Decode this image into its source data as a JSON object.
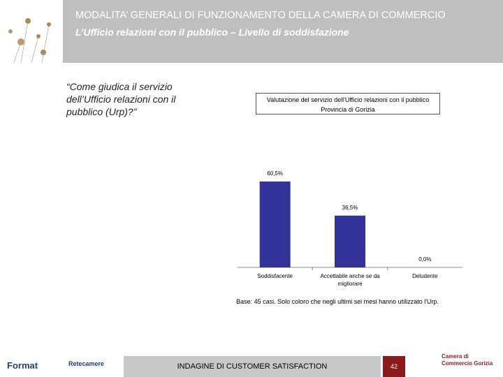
{
  "header": {
    "title": "MODALITA’ GENERALI DI FUNZIONAMENTO DELLA CAMERA DI COMMERCIO",
    "subtitle": "L’Ufficio relazioni con il pubblico – Livello di soddisfazione"
  },
  "question": "“Come giudica il servizio dell’Ufficio relazioni con il pubblico (Urp)?”",
  "chart_data": {
    "type": "bar",
    "title": "Valutazione del servizio dell'Ufficio relazioni con il pubblico",
    "subtitle": "Provincia di Gorizia",
    "categories": [
      "Soddisfacente",
      "Accettabile anche se da migliorare",
      "Deludente"
    ],
    "values": [
      60.5,
      36.5,
      0.0
    ],
    "value_labels": [
      "60,5%",
      "36,5%",
      "0,0%"
    ],
    "color": "#333399"
  },
  "note": "Base: 45 casi. Solo coloro che negli ultimi sei mesi hanno utilizzato l'Urp.",
  "footer": {
    "left_logo": "Format",
    "center_logo": "Retecamere",
    "label": "INDAGINE DI CUSTOMER SATISFACTION",
    "page": "42",
    "right_logo": "Camera di Commercio Gorizia"
  }
}
